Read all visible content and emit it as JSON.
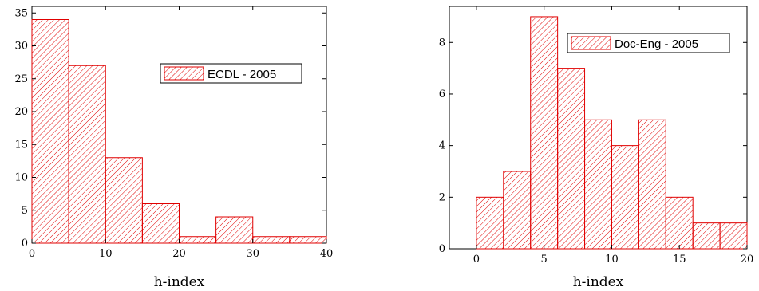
{
  "chart_data": [
    {
      "type": "bar",
      "bin_edges": [
        0,
        5,
        10,
        15,
        20,
        25,
        30,
        35,
        40
      ],
      "values": [
        34,
        27,
        13,
        6,
        1,
        4,
        1,
        1
      ],
      "xlabel": "h-index",
      "ylabel": "",
      "xlim": [
        0,
        40
      ],
      "ylim": [
        0,
        36
      ],
      "xticks": [
        0,
        10,
        20,
        30,
        40
      ],
      "yticks": [
        0,
        5,
        10,
        15,
        20,
        25,
        30,
        35
      ],
      "legend": "ECDL - 2005",
      "legend_position": "top-right",
      "color": "#e00000",
      "grid": false
    },
    {
      "type": "bar",
      "bin_edges": [
        0,
        2,
        4,
        6,
        8,
        10,
        12,
        14,
        16,
        18,
        20
      ],
      "values": [
        2,
        3,
        9,
        7,
        5,
        4,
        5,
        2,
        1,
        1
      ],
      "xlabel": "h-index",
      "ylabel": "",
      "xlim": [
        -2,
        20
      ],
      "ylim": [
        0,
        9.4
      ],
      "xticks": [
        0,
        5,
        10,
        15,
        20
      ],
      "yticks": [
        0,
        2,
        4,
        6,
        8
      ],
      "legend": "Doc-Eng - 2005",
      "legend_position": "top-right",
      "color": "#e00000",
      "grid": false
    }
  ]
}
